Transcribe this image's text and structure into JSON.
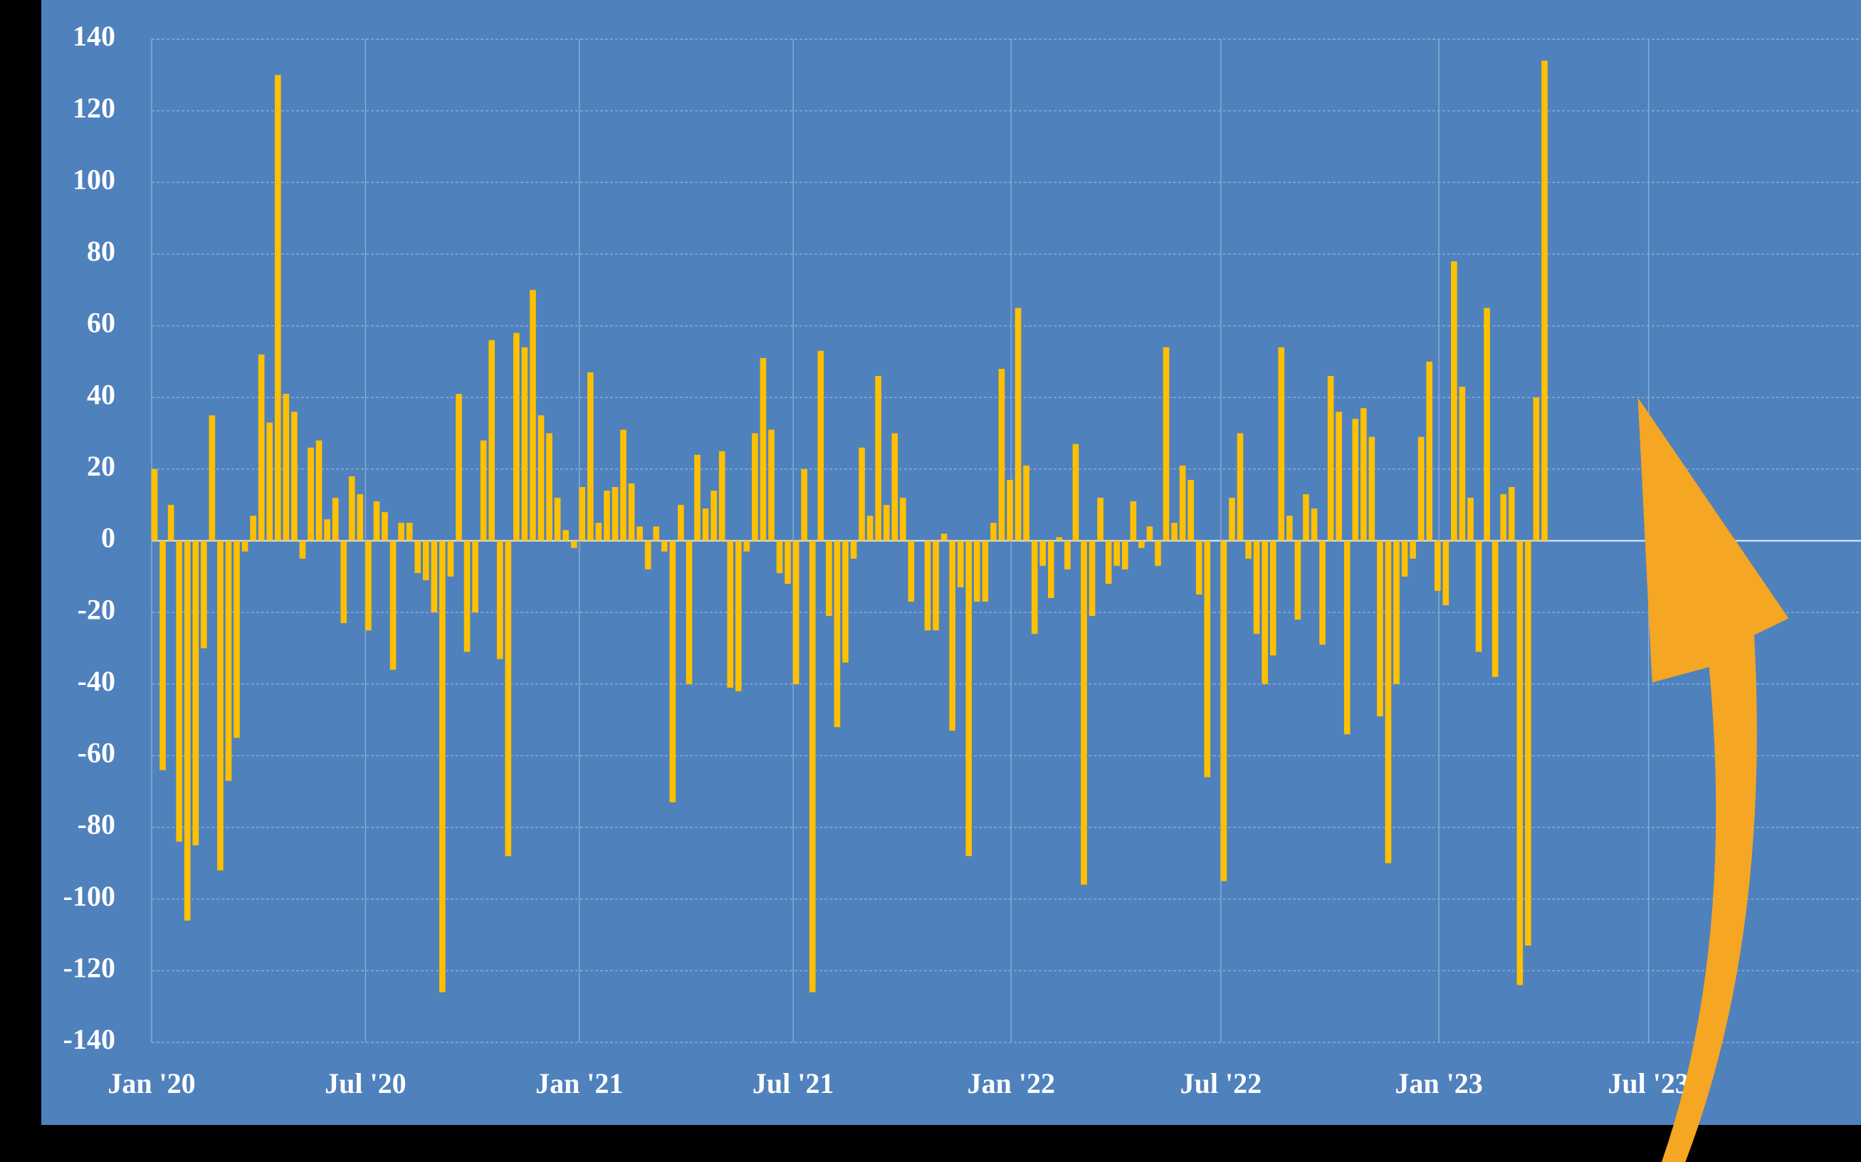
{
  "chart_data": {
    "type": "bar",
    "x": [
      0,
      1,
      2,
      3,
      4,
      5,
      6,
      7,
      8,
      9,
      10,
      11,
      12,
      13,
      14,
      15,
      16,
      17,
      18,
      19,
      20,
      21,
      22,
      23,
      24,
      25,
      26,
      27,
      28,
      29,
      30,
      31,
      32,
      33,
      34,
      35,
      36,
      37,
      38,
      39,
      40,
      41,
      42,
      43,
      44,
      45,
      46,
      47,
      48,
      49,
      50,
      51,
      52,
      53,
      54,
      55,
      56,
      57,
      58,
      59,
      60,
      61,
      62,
      63,
      64,
      65,
      66,
      67,
      68,
      69,
      70,
      71,
      72,
      73,
      74,
      75,
      76,
      77,
      78,
      79,
      80,
      81,
      82,
      83,
      84,
      85,
      86,
      87,
      88,
      89,
      90,
      91,
      92,
      93,
      94,
      95,
      96,
      97,
      98,
      99,
      100,
      101,
      102,
      103,
      104,
      105,
      106,
      107,
      108,
      109,
      110,
      111,
      112,
      113,
      114,
      115,
      116,
      117,
      118,
      119,
      120,
      121,
      122,
      123,
      124,
      125,
      126,
      127,
      128,
      129,
      130,
      131,
      132,
      133,
      134,
      135,
      136,
      137,
      138,
      139,
      140,
      141,
      142,
      143,
      144,
      145,
      146,
      147,
      148,
      149,
      150,
      151,
      152,
      153,
      154,
      155,
      156,
      157,
      158,
      159,
      160,
      161,
      162,
      163,
      164,
      165,
      166,
      167,
      168,
      169
    ],
    "values": [
      20,
      -64,
      10,
      -84,
      -106,
      -85,
      -30,
      35,
      -92,
      -67,
      -55,
      -3,
      7,
      52,
      33,
      130,
      41,
      36,
      -5,
      26,
      28,
      6,
      12,
      -23,
      18,
      13,
      -25,
      11,
      8,
      -36,
      5,
      5,
      -9,
      -11,
      -20,
      -126,
      -10,
      41,
      -31,
      -20,
      28,
      56,
      -33,
      -88,
      58,
      54,
      70,
      35,
      30,
      12,
      3,
      -2,
      15,
      47,
      5,
      14,
      15,
      31,
      16,
      4,
      -8,
      4,
      -3,
      -73,
      10,
      -40,
      24,
      9,
      14,
      25,
      -41,
      -42,
      -3,
      30,
      51,
      31,
      -9,
      -12,
      -40,
      20,
      -126,
      53,
      -21,
      -52,
      -34,
      -5,
      26,
      7,
      46,
      10,
      30,
      12,
      -17,
      0,
      -25,
      -25,
      2,
      -53,
      -13,
      -88,
      -17,
      -17,
      5,
      48,
      17,
      65,
      21,
      -26,
      -7,
      -16,
      1,
      -8,
      27,
      -96,
      -21,
      12,
      -12,
      -7,
      -8,
      11,
      -2,
      4,
      -7,
      54,
      5,
      21,
      17,
      -15,
      -66,
      0,
      -95,
      12,
      30,
      -5,
      -26,
      -40,
      -32,
      54,
      7,
      -22,
      13,
      9,
      -29,
      46,
      36,
      -54,
      34,
      37,
      29,
      -49,
      -90,
      -40,
      -10,
      -5,
      29,
      50,
      -14,
      -18,
      78,
      43,
      12,
      -31,
      65,
      -38,
      13,
      15,
      -124,
      -113,
      40,
      134
    ],
    "color": "#ffc000",
    "xlim": [
      0,
      208
    ],
    "xticks": [
      {
        "value": 0,
        "label": "Jan '20"
      },
      {
        "value": 26,
        "label": "Jul '20"
      },
      {
        "value": 52,
        "label": "Jan '21"
      },
      {
        "value": 78,
        "label": "Jul '21"
      },
      {
        "value": 104.5,
        "label": "Jan '22"
      },
      {
        "value": 130,
        "label": "Jul '22"
      },
      {
        "value": 156.5,
        "label": "Jan '23"
      },
      {
        "value": 182,
        "label": "Jul '23"
      }
    ],
    "ylim": [
      -140,
      140
    ],
    "yticks": [
      -140,
      -120,
      -100,
      -80,
      -60,
      -40,
      -20,
      0,
      20,
      40,
      60,
      80,
      100,
      120,
      140
    ],
    "grid": true
  }
}
